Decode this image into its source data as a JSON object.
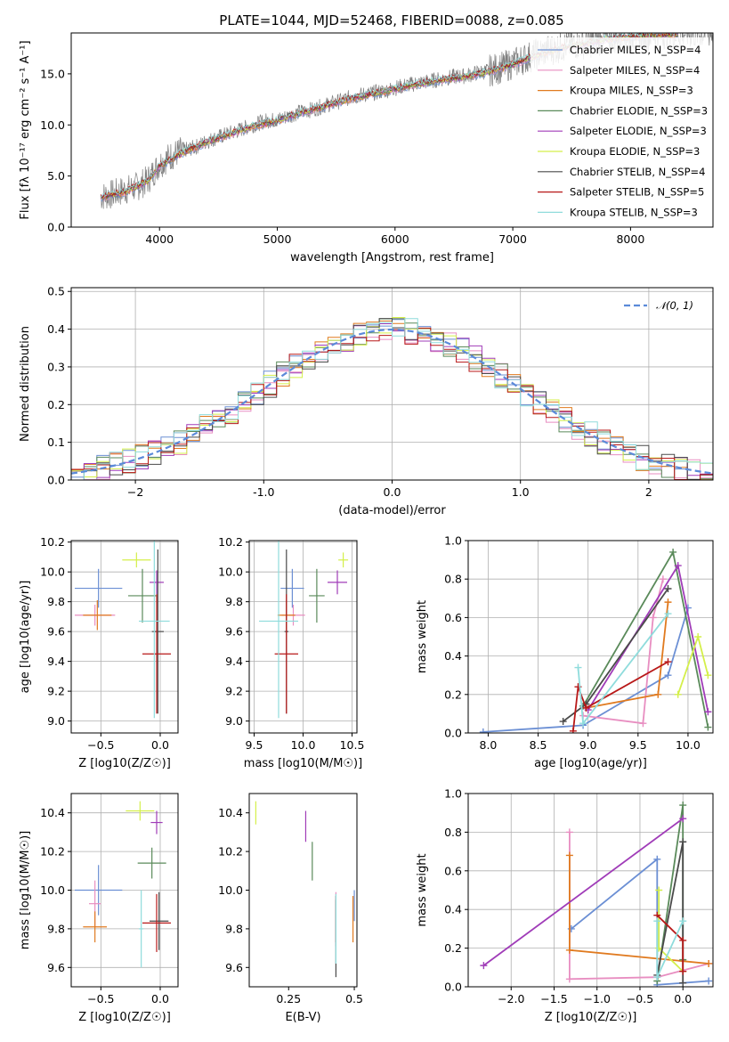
{
  "figure": {
    "title": "PLATE=1044, MJD=52468, FIBERID=0088, z=0.085"
  },
  "chart_data": [
    {
      "id": "spectrum",
      "type": "line",
      "xlabel": "wavelength [Angstrom, rest frame]",
      "ylabel": "Flux [fλ 10⁻¹⁷ erg cm⁻² s⁻¹ A⁻¹]",
      "xlim": [
        3250,
        8700
      ],
      "ylim": [
        0,
        19
      ],
      "xticks": [
        4000,
        5000,
        6000,
        7000,
        8000
      ],
      "yticks": [
        0,
        5,
        10,
        15
      ],
      "grid": false,
      "legend_position": "right",
      "observed_spectrum": {
        "color": "#7f7f7f",
        "x": [
          3500,
          3600,
          3700,
          3800,
          3900,
          4000,
          4100,
          4200,
          4300,
          4400,
          4500,
          4600,
          4700,
          4800,
          4900,
          5000,
          5100,
          5200,
          5300,
          5400,
          5500,
          5600,
          5700,
          5800,
          5900,
          6000,
          6100,
          6200,
          6300,
          6400,
          6500,
          6600,
          6700,
          6800,
          6900,
          7000,
          7100,
          7200,
          7300,
          7400,
          7500,
          7600,
          7700,
          7800,
          7900,
          8000,
          8100,
          8200,
          8300
        ],
        "y": [
          3.0,
          3.2,
          3.6,
          3.9,
          4.6,
          6.2,
          7.0,
          7.5,
          7.8,
          8.4,
          8.8,
          9.2,
          9.6,
          10.0,
          10.4,
          10.5,
          10.9,
          11.3,
          11.5,
          11.9,
          12.2,
          12.6,
          12.9,
          13.1,
          13.3,
          13.6,
          13.9,
          14.1,
          14.3,
          14.5,
          14.7,
          14.8,
          15.1,
          15.3,
          15.6,
          16.0,
          16.5,
          16.9,
          17.3,
          17.6,
          17.9,
          18.0,
          18.2,
          18.5,
          18.6,
          18.7,
          18.8,
          18.9,
          19.0
        ]
      },
      "series": [
        {
          "name": "Chabrier MILES, N_SSP=4",
          "color": "#6b8fd4"
        },
        {
          "name": "Salpeter MILES, N_SSP=4",
          "color": "#e88ec1"
        },
        {
          "name": "Kroupa MILES, N_SSP=3",
          "color": "#e07a1f"
        },
        {
          "name": "Chabrier ELODIE, N_SSP=3",
          "color": "#5a8a5a"
        },
        {
          "name": "Salpeter ELODIE, N_SSP=3",
          "color": "#a03cb8"
        },
        {
          "name": "Kroupa ELODIE, N_SSP=3",
          "color": "#d4ef4a"
        },
        {
          "name": "Chabrier STELIB, N_SSP=4",
          "color": "#4a4a4a"
        },
        {
          "name": "Salpeter STELIB, N_SSP=5",
          "color": "#b81818"
        },
        {
          "name": "Kroupa STELIB, N_SSP=3",
          "color": "#8fdcdc"
        }
      ],
      "model_curve": {
        "x": [
          3500,
          3700,
          3900,
          4000,
          4200,
          4400,
          4600,
          4800,
          5000,
          5200,
          5400,
          5600,
          5800,
          6000,
          6200,
          6400,
          6600,
          6800,
          7000,
          7200,
          7400,
          7600,
          7800,
          8000,
          8200
        ],
        "y": [
          2.9,
          3.4,
          4.5,
          6.0,
          7.3,
          8.3,
          9.1,
          9.9,
          10.4,
          11.2,
          11.8,
          12.5,
          13.0,
          13.5,
          14.0,
          14.4,
          14.7,
          15.2,
          15.9,
          16.8,
          17.5,
          17.9,
          18.4,
          18.6,
          18.8
        ]
      }
    },
    {
      "id": "residuals",
      "type": "histogram",
      "xlabel": "(data-model)/error",
      "ylabel": "Normed distribution",
      "xlim": [
        -2.5,
        2.5
      ],
      "ylim": [
        0,
        0.51
      ],
      "xticks": [
        -2,
        -1,
        0,
        1,
        2
      ],
      "yticks": [
        0.0,
        0.1,
        0.2,
        0.3,
        0.4,
        0.5
      ],
      "grid": true,
      "legend": {
        "label": "𝒩(0, 1)",
        "position": "top-right",
        "color": "#5b8ad9"
      },
      "bin_width": 0.1
    },
    {
      "id": "age_vs_Z",
      "type": "scatter",
      "xlabel": "Z [log10(Z/Z☉)]",
      "ylabel": "age [log10(age/yr)]",
      "xlim": [
        -0.75,
        0.15
      ],
      "ylim": [
        8.92,
        10.21
      ],
      "xticks": [
        -0.5,
        0.0
      ],
      "yticks": [
        9.0,
        9.2,
        9.4,
        9.6,
        9.8,
        10.0,
        10.2
      ],
      "grid": true,
      "points": [
        {
          "x": -0.52,
          "y": 9.89,
          "xerr": 0.2,
          "yerr": 0.13,
          "color": "#6b8fd4"
        },
        {
          "x": -0.55,
          "y": 9.71,
          "xerr": 0.17,
          "yerr": 0.07,
          "color": "#e88ec1"
        },
        {
          "x": -0.53,
          "y": 9.71,
          "xerr": 0.12,
          "yerr": 0.1,
          "color": "#e07a1f"
        },
        {
          "x": -0.15,
          "y": 9.84,
          "xerr": 0.12,
          "yerr": 0.18,
          "color": "#5a8a5a"
        },
        {
          "x": -0.03,
          "y": 9.93,
          "xerr": 0.06,
          "yerr": 0.08,
          "color": "#a03cb8"
        },
        {
          "x": -0.2,
          "y": 10.08,
          "xerr": 0.12,
          "yerr": 0.05,
          "color": "#d4ef4a"
        },
        {
          "x": -0.02,
          "y": 9.6,
          "xerr": 0.05,
          "yerr": 0.55,
          "color": "#4a4a4a"
        },
        {
          "x": -0.03,
          "y": 9.45,
          "xerr": 0.12,
          "yerr": 0.4,
          "color": "#b81818"
        },
        {
          "x": -0.05,
          "y": 9.67,
          "xerr": 0.13,
          "yerr": 0.65,
          "color": "#8fdcdc"
        }
      ]
    },
    {
      "id": "age_vs_mass",
      "type": "scatter",
      "xlabel": "mass [log10(M/M☉)]",
      "ylabel": "",
      "xlim": [
        9.45,
        10.55
      ],
      "ylim": [
        8.92,
        10.21
      ],
      "xticks": [
        9.5,
        10.0,
        10.5
      ],
      "yticks": [
        9.0,
        9.2,
        9.4,
        9.6,
        9.8,
        10.0,
        10.2
      ],
      "grid": true,
      "points": [
        {
          "x": 9.89,
          "y": 9.89,
          "xerr": 0.12,
          "yerr": 0.13,
          "color": "#6b8fd4"
        },
        {
          "x": 9.9,
          "y": 9.71,
          "xerr": 0.12,
          "yerr": 0.07,
          "color": "#e88ec1"
        },
        {
          "x": 9.83,
          "y": 9.71,
          "xerr": 0.09,
          "yerr": 0.1,
          "color": "#e07a1f"
        },
        {
          "x": 10.14,
          "y": 9.84,
          "xerr": 0.08,
          "yerr": 0.18,
          "color": "#5a8a5a"
        },
        {
          "x": 10.35,
          "y": 9.93,
          "xerr": 0.1,
          "yerr": 0.08,
          "color": "#a03cb8"
        },
        {
          "x": 10.41,
          "y": 10.08,
          "xerr": 0.05,
          "yerr": 0.05,
          "color": "#d4ef4a"
        },
        {
          "x": 9.83,
          "y": 9.6,
          "xerr": 0.02,
          "yerr": 0.55,
          "color": "#4a4a4a"
        },
        {
          "x": 9.83,
          "y": 9.45,
          "xerr": 0.12,
          "yerr": 0.4,
          "color": "#b81818"
        },
        {
          "x": 9.75,
          "y": 9.67,
          "xerr": 0.2,
          "yerr": 0.65,
          "color": "#8fdcdc"
        }
      ]
    },
    {
      "id": "weight_vs_age",
      "type": "line",
      "xlabel": "age [log10(age/yr)]",
      "ylabel": "mass weight",
      "xlim": [
        7.8,
        10.25
      ],
      "ylim": [
        0,
        1.0
      ],
      "xticks": [
        8.0,
        8.5,
        9.0,
        9.5,
        10.0
      ],
      "yticks": [
        0.0,
        0.2,
        0.4,
        0.6,
        0.8,
        1.0
      ],
      "grid": true,
      "series": [
        {
          "color": "#6b8fd4",
          "points": [
            [
              7.95,
              0.005
            ],
            [
              8.95,
              0.04
            ],
            [
              9.8,
              0.3
            ],
            [
              10.0,
              0.65
            ]
          ]
        },
        {
          "color": "#e88ec1",
          "points": [
            [
              8.95,
              0.09
            ],
            [
              9.55,
              0.05
            ],
            [
              9.65,
              0.6
            ],
            [
              9.75,
              0.8
            ]
          ]
        },
        {
          "color": "#e07a1f",
          "points": [
            [
              8.98,
              0.13
            ],
            [
              9.7,
              0.2
            ],
            [
              9.8,
              0.68
            ]
          ]
        },
        {
          "color": "#5a8a5a",
          "points": [
            [
              8.95,
              0.14
            ],
            [
              9.85,
              0.94
            ],
            [
              10.2,
              0.03
            ]
          ]
        },
        {
          "color": "#a03cb8",
          "points": [
            [
              9.0,
              0.12
            ],
            [
              9.9,
              0.87
            ],
            [
              10.2,
              0.11
            ]
          ]
        },
        {
          "color": "#d4ef4a",
          "points": [
            [
              9.9,
              0.2
            ],
            [
              10.1,
              0.5
            ],
            [
              10.2,
              0.3
            ]
          ]
        },
        {
          "color": "#4a4a4a",
          "points": [
            [
              8.75,
              0.06
            ],
            [
              8.98,
              0.15
            ],
            [
              9.8,
              0.75
            ]
          ]
        },
        {
          "color": "#b81818",
          "points": [
            [
              8.85,
              0.01
            ],
            [
              8.9,
              0.24
            ],
            [
              8.98,
              0.13
            ],
            [
              9.8,
              0.37
            ]
          ]
        },
        {
          "color": "#8fdcdc",
          "points": [
            [
              8.9,
              0.34
            ],
            [
              8.95,
              0.05
            ],
            [
              9.8,
              0.62
            ]
          ]
        }
      ]
    },
    {
      "id": "mass_vs_Z",
      "type": "scatter",
      "xlabel": "Z [log10(Z/Z☉)]",
      "ylabel": "mass [log10(M/M☉)]",
      "xlim": [
        -0.75,
        0.15
      ],
      "ylim": [
        9.5,
        10.5
      ],
      "xticks": [
        -0.5,
        0.0
      ],
      "yticks": [
        9.6,
        9.8,
        10.0,
        10.2,
        10.4
      ],
      "grid": true,
      "points": [
        {
          "x": -0.52,
          "y": 10.0,
          "xerr": 0.2,
          "yerr": 0.13,
          "color": "#6b8fd4"
        },
        {
          "x": -0.55,
          "y": 9.93,
          "xerr": 0.05,
          "yerr": 0.12,
          "color": "#e88ec1"
        },
        {
          "x": -0.55,
          "y": 9.81,
          "xerr": 0.1,
          "yerr": 0.08,
          "color": "#e07a1f"
        },
        {
          "x": -0.07,
          "y": 10.14,
          "xerr": 0.12,
          "yerr": 0.08,
          "color": "#5a8a5a"
        },
        {
          "x": -0.03,
          "y": 10.35,
          "xerr": 0.05,
          "yerr": 0.06,
          "color": "#a03cb8"
        },
        {
          "x": -0.17,
          "y": 10.41,
          "xerr": 0.12,
          "yerr": 0.05,
          "color": "#d4ef4a"
        },
        {
          "x": -0.01,
          "y": 9.84,
          "xerr": 0.08,
          "yerr": 0.15,
          "color": "#4a4a4a"
        },
        {
          "x": -0.03,
          "y": 9.83,
          "xerr": 0.12,
          "yerr": 0.15,
          "color": "#b81818"
        },
        {
          "x": -0.16,
          "y": 9.8,
          "xerr": 0.02,
          "yerr": 0.2,
          "color": "#8fdcdc"
        }
      ]
    },
    {
      "id": "mass_vs_EBV",
      "type": "scatter",
      "xlabel": "E(B-V)",
      "ylabel": "",
      "xlim": [
        0.1,
        0.51
      ],
      "ylim": [
        9.5,
        10.5
      ],
      "xticks": [
        0.25,
        0.5
      ],
      "yticks": [
        9.6,
        9.8,
        10.0,
        10.2,
        10.4
      ],
      "grid": false,
      "points": [
        {
          "x": 0.5,
          "y": 9.92,
          "yerr": 0.08,
          "color": "#6b8fd4"
        },
        {
          "x": 0.43,
          "y": 9.85,
          "yerr": 0.14,
          "color": "#e88ec1"
        },
        {
          "x": 0.495,
          "y": 9.85,
          "yerr": 0.12,
          "color": "#e07a1f"
        },
        {
          "x": 0.34,
          "y": 10.15,
          "yerr": 0.1,
          "color": "#5a8a5a"
        },
        {
          "x": 0.315,
          "y": 10.33,
          "yerr": 0.08,
          "color": "#a03cb8"
        },
        {
          "x": 0.125,
          "y": 10.4,
          "yerr": 0.06,
          "color": "#d4ef4a"
        },
        {
          "x": 0.43,
          "y": 9.75,
          "yerr": 0.2,
          "color": "#4a4a4a"
        },
        {
          "x": 0.43,
          "y": 9.85,
          "yerr": 0.12,
          "color": "#b81818"
        },
        {
          "x": 0.43,
          "y": 9.8,
          "yerr": 0.18,
          "color": "#8fdcdc"
        }
      ]
    },
    {
      "id": "weight_vs_Z",
      "type": "line",
      "xlabel": "Z [log10(Z/Z☉)]",
      "ylabel": "mass weight",
      "xlim": [
        -2.5,
        0.35
      ],
      "ylim": [
        0,
        1.0
      ],
      "xticks": [
        -2.0,
        -1.5,
        -1.0,
        -0.5,
        0.0
      ],
      "yticks": [
        0.0,
        0.2,
        0.4,
        0.6,
        0.8,
        1.0
      ],
      "grid": true,
      "series": [
        {
          "color": "#6b8fd4",
          "points": [
            [
              -1.3,
              0.3
            ],
            [
              -0.3,
              0.66
            ],
            [
              -0.3,
              0.01
            ],
            [
              0.3,
              0.03
            ]
          ]
        },
        {
          "color": "#e88ec1",
          "points": [
            [
              -1.32,
              0.8
            ],
            [
              -1.32,
              0.04
            ],
            [
              -0.3,
              0.05
            ],
            [
              0.3,
              0.12
            ]
          ]
        },
        {
          "color": "#e07a1f",
          "points": [
            [
              -1.32,
              0.68
            ],
            [
              -1.32,
              0.19
            ],
            [
              0.3,
              0.12
            ]
          ]
        },
        {
          "color": "#5a8a5a",
          "points": [
            [
              -0.3,
              0.03
            ],
            [
              0.0,
              0.94
            ],
            [
              0.0,
              0.14
            ]
          ]
        },
        {
          "color": "#a03cb8",
          "points": [
            [
              -2.32,
              0.11
            ],
            [
              0.0,
              0.87
            ]
          ]
        },
        {
          "color": "#d4ef4a",
          "points": [
            [
              -0.28,
              0.5
            ],
            [
              -0.28,
              0.2
            ],
            [
              0.0,
              0.08
            ]
          ]
        },
        {
          "color": "#4a4a4a",
          "points": [
            [
              -0.3,
              0.06
            ],
            [
              0.0,
              0.75
            ],
            [
              0.0,
              0.02
            ]
          ]
        },
        {
          "color": "#b81818",
          "points": [
            [
              -0.3,
              0.37
            ],
            [
              0.0,
              0.24
            ],
            [
              0.0,
              0.08
            ]
          ]
        },
        {
          "color": "#8fdcdc",
          "points": [
            [
              -0.3,
              0.34
            ],
            [
              -0.3,
              0.05
            ],
            [
              0.0,
              0.34
            ]
          ]
        }
      ]
    }
  ]
}
